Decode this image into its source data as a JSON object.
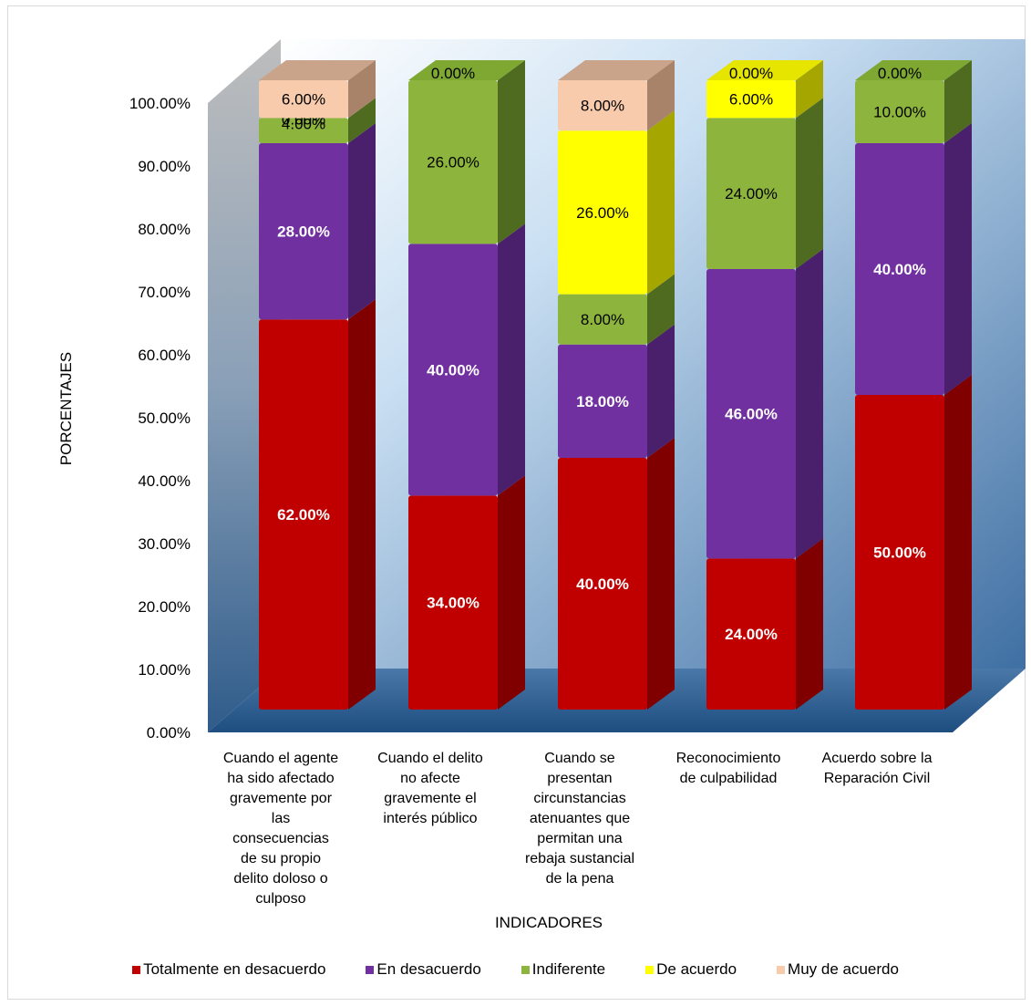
{
  "chart_data": {
    "type": "bar",
    "stacked": true,
    "three_d": true,
    "xlabel": "INDICADORES",
    "ylabel": "PORCENTAJES",
    "ylim": [
      0,
      100
    ],
    "y_ticks": [
      "0.00%",
      "10.00%",
      "20.00%",
      "30.00%",
      "40.00%",
      "50.00%",
      "60.00%",
      "70.00%",
      "80.00%",
      "90.00%",
      "100.00%"
    ],
    "categories": [
      "Cuando el agente ha sido afectado gravemente por las consecuencias de su propio delito doloso o culposo",
      "Cuando el delito no afecte gravemente el interés público",
      "Cuando se presentan circunstancias atenuantes que permitan una rebaja sustancial de la pena",
      "Reconocimiento de culpabilidad",
      "Acuerdo sobre la Reparación Civil"
    ],
    "category_lines": [
      [
        "Cuando el agente",
        "ha sido afectado",
        "gravemente por",
        "las",
        "consecuencias",
        "de su propio",
        "delito doloso o",
        "culposo"
      ],
      [
        "Cuando el delito",
        "no afecte",
        "gravemente el",
        "interés público"
      ],
      [
        "Cuando se",
        "presentan",
        "circunstancias",
        "atenuantes que",
        "permitan una",
        "rebaja sustancial",
        "de la pena"
      ],
      [
        "Reconocimiento",
        "de culpabilidad"
      ],
      [
        "Acuerdo sobre la",
        "Reparación Civil"
      ]
    ],
    "series": [
      {
        "name": "Totalmente en desacuerdo",
        "color": "#c00000",
        "side": "#800000",
        "top": "#e02020",
        "values": [
          62,
          34,
          40,
          24,
          50
        ],
        "labels": [
          "62.00%",
          "34.00%",
          "40.00%",
          "24.00%",
          "50.00%"
        ],
        "label_style": "bold-white"
      },
      {
        "name": "En desacuerdo",
        "color": "#7030a0",
        "side": "#4a1f6b",
        "top": "#8a48bd",
        "values": [
          28,
          40,
          18,
          46,
          40
        ],
        "labels": [
          "28.00%",
          "40.00%",
          "18.00%",
          "46.00%",
          "40.00%"
        ],
        "label_style": "bold-white"
      },
      {
        "name": "Indiferente",
        "color": "#8db43c",
        "side": "#4f6b1f",
        "top": "#7ea832",
        "values": [
          4,
          26,
          8,
          24,
          10
        ],
        "labels": [
          "4.00%",
          "26.00%",
          "8.00%",
          "24.00%",
          "10.00%"
        ],
        "label_style": "black"
      },
      {
        "name": "De acuerdo",
        "color": "#ffff00",
        "side": "#a6a600",
        "top": "#e5e500",
        "values": [
          0,
          0,
          26,
          6,
          0
        ],
        "labels": [
          "0.00%",
          "",
          "26.00%",
          "6.00%",
          ""
        ],
        "label_style": "black"
      },
      {
        "name": "Muy de acuerdo",
        "color": "#f8cbad",
        "side": "#a8836a",
        "top": "#c9a48a",
        "values": [
          6,
          0,
          8,
          0,
          0
        ],
        "labels": [
          "6.00%",
          "0.00%",
          "8.00%",
          "0.00%",
          "0.00%"
        ],
        "label_style": "black"
      }
    ],
    "legend_position": "bottom",
    "grid": false
  }
}
